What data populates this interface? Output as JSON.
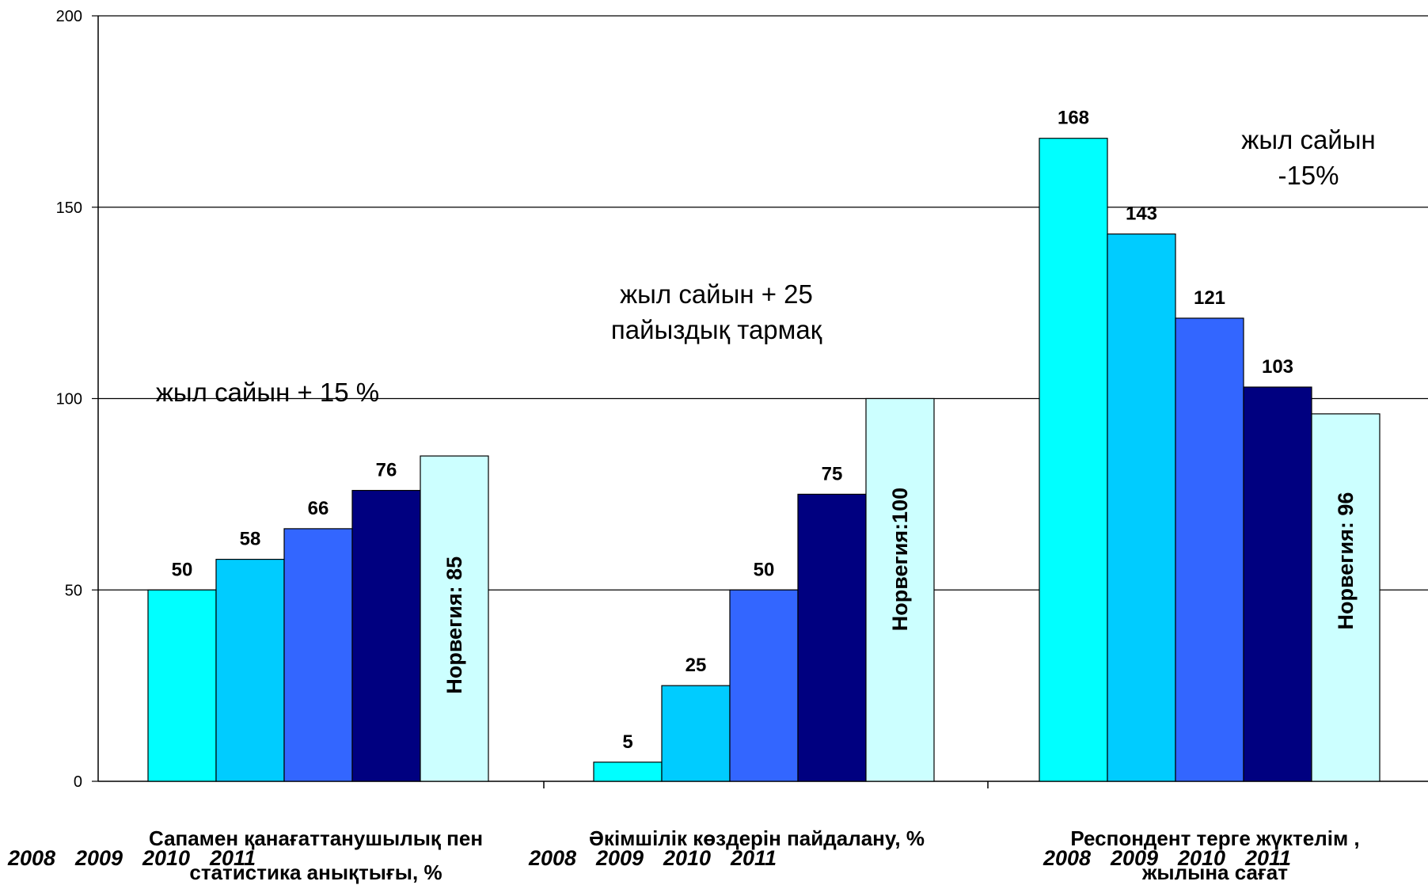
{
  "chart_data": {
    "type": "bar",
    "ylim": [
      0,
      200
    ],
    "yticks": [
      "0",
      "50",
      "100",
      "150",
      "200"
    ],
    "grid": true,
    "categories": [
      {
        "label_lines": [
          "Сапамен қанағаттанушылық пен",
          "статистика анықтығы, %"
        ],
        "years": [
          "2008",
          "2009",
          "2010",
          "2011"
        ],
        "values": [
          50,
          58,
          66,
          76
        ],
        "value_labels": [
          "50",
          "58",
          "66",
          "76"
        ],
        "norway_value": 85,
        "norway_label": "Норвегия:  85"
      },
      {
        "label_lines": [
          "Әкімшілік көздерін пайдалану, %"
        ],
        "years": [
          "2008",
          "2009",
          "2010",
          "2011"
        ],
        "values": [
          5,
          25,
          50,
          75
        ],
        "value_labels": [
          "5",
          "25",
          "50",
          "75"
        ],
        "norway_value": 100,
        "norway_label": "Норвегия:100"
      },
      {
        "label_lines": [
          "Респондент терге жүктелім ,",
          "жылына сағат"
        ],
        "years": [
          "2008",
          "2009",
          "2010",
          "2011"
        ],
        "values": [
          168,
          143,
          121,
          103
        ],
        "value_labels": [
          "168",
          "143",
          "121",
          "103"
        ],
        "norway_value": 96,
        "norway_label": "Норвегия:  96"
      }
    ],
    "bar_colors": [
      "#00ffff",
      "#00ccff",
      "#3366ff",
      "#000080",
      "#ccffff"
    ],
    "annotations": [
      {
        "lines": [
          "жыл сайын + 15 %"
        ]
      },
      {
        "lines": [
          "жыл сайын + 25",
          "пайыздық тармақ"
        ]
      },
      {
        "lines": [
          "жыл сайын",
          "-15%"
        ]
      }
    ]
  }
}
